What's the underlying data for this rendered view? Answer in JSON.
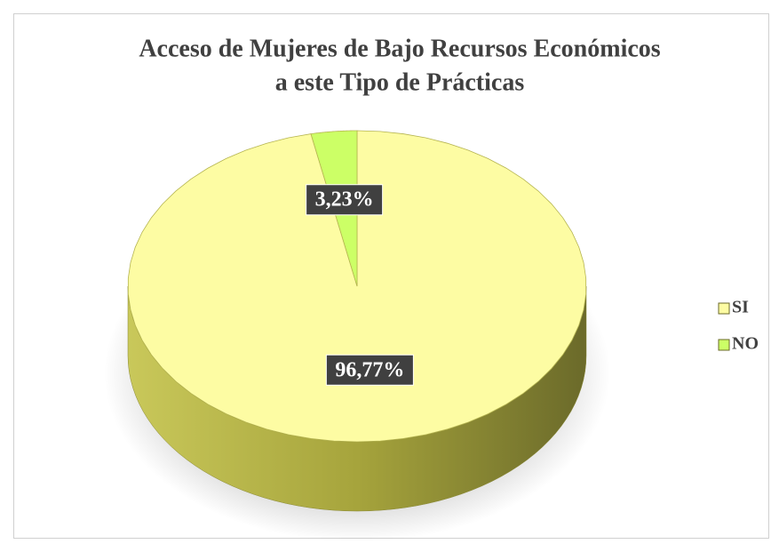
{
  "chart_data": {
    "type": "pie",
    "title": [
      "Acceso de Mujeres de Bajo Recursos Económicos",
      "a este Tipo de Prácticas"
    ],
    "categories": [
      "SI",
      "NO"
    ],
    "values": [
      96.77,
      3.23
    ],
    "value_labels": [
      "96,77%",
      "3,23%"
    ],
    "colors": [
      "#fdfca3",
      "#ccff66"
    ],
    "legend": "right"
  }
}
